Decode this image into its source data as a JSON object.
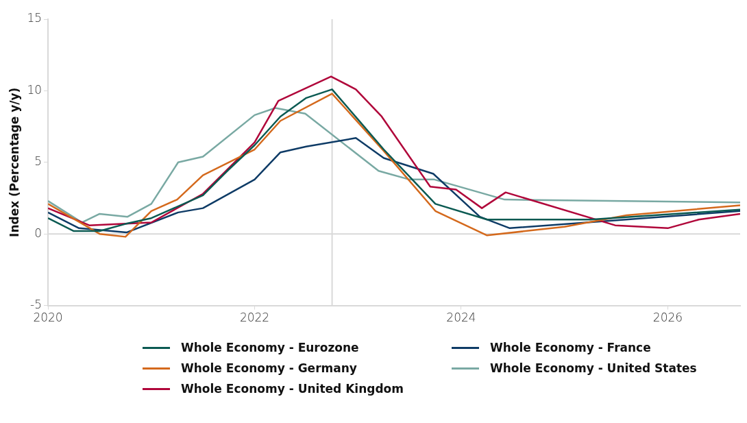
{
  "chart_data": {
    "type": "line",
    "ylabel": "Index (Percentage y/y)",
    "xlim": [
      2020,
      2026.7
    ],
    "xticks": [
      2020,
      2022,
      2024,
      2026
    ],
    "ylim": [
      -5,
      15
    ],
    "yticks": [
      -5,
      0,
      5,
      10,
      15
    ],
    "grid": false,
    "legend": "bottom",
    "marker": "none",
    "line_style": "solid",
    "ref_lines": [
      {
        "axis": "x",
        "value": 2022.75,
        "color": "#d9d9d9"
      },
      {
        "axis": "y",
        "value": 0,
        "color": "#d9d9d9"
      }
    ],
    "series": [
      {
        "name": "Whole Economy - Eurozone",
        "color": "#0b5a52",
        "x": [
          2020,
          2020.25,
          2020.5,
          2020.75,
          2021,
          2021.25,
          2021.5,
          2021.75,
          2022,
          2022.25,
          2022.5,
          2022.75,
          2023,
          2023.25,
          2023.75,
          2024.25,
          2025.25,
          2026.7
        ],
        "values": [
          1.1,
          0.2,
          0.2,
          0.7,
          1.1,
          1.9,
          2.7,
          4.5,
          6.2,
          8.2,
          9.5,
          10.1,
          8.0,
          5.9,
          2.1,
          1.0,
          1.0,
          1.7
        ]
      },
      {
        "name": "Whole Economy - Germany",
        "color": "#d4691c",
        "x": [
          2020,
          2020.5,
          2020.75,
          2021,
          2021.25,
          2021.5,
          2022,
          2022.25,
          2022.75,
          2023.25,
          2023.75,
          2024.25,
          2025,
          2025.6,
          2026.7
        ],
        "values": [
          2.1,
          0.0,
          -0.2,
          1.6,
          2.4,
          4.1,
          5.9,
          7.9,
          9.8,
          5.8,
          1.6,
          -0.1,
          0.5,
          1.3,
          2.0
        ]
      },
      {
        "name": "Whole Economy - United Kingdom",
        "color": "#b0063a",
        "x": [
          2020,
          2020.4,
          2021,
          2021.5,
          2022,
          2022.23,
          2022.74,
          2022.98,
          2023.23,
          2023.7,
          2023.95,
          2024.2,
          2024.43,
          2025.49,
          2026,
          2026.3,
          2026.7
        ],
        "values": [
          1.8,
          0.6,
          0.8,
          2.8,
          6.4,
          9.3,
          11.0,
          10.1,
          8.2,
          3.3,
          3.1,
          1.8,
          2.9,
          0.6,
          0.4,
          1.0,
          1.4
        ]
      },
      {
        "name": "Whole Economy - France",
        "color": "#0e3b66",
        "x": [
          2020,
          2020.3,
          2020.76,
          2021.26,
          2021.5,
          2022,
          2022.25,
          2022.5,
          2022.98,
          2023.25,
          2023.73,
          2024.18,
          2024.47,
          2026.7
        ],
        "values": [
          1.5,
          0.4,
          0.1,
          1.5,
          1.8,
          3.8,
          5.7,
          6.1,
          6.7,
          5.3,
          4.2,
          1.2,
          0.4,
          1.6
        ]
      },
      {
        "name": "Whole Economy - United States",
        "color": "#79a9a3",
        "x": [
          2020,
          2020.33,
          2020.5,
          2020.77,
          2021,
          2021.26,
          2021.5,
          2022,
          2022.2,
          2022.49,
          2023.2,
          2023.5,
          2023.74,
          2024.42,
          2026.7
        ],
        "values": [
          2.3,
          0.8,
          1.4,
          1.2,
          2.1,
          5.0,
          5.4,
          8.3,
          8.8,
          8.4,
          4.4,
          3.8,
          3.8,
          2.4,
          2.2
        ]
      }
    ]
  }
}
